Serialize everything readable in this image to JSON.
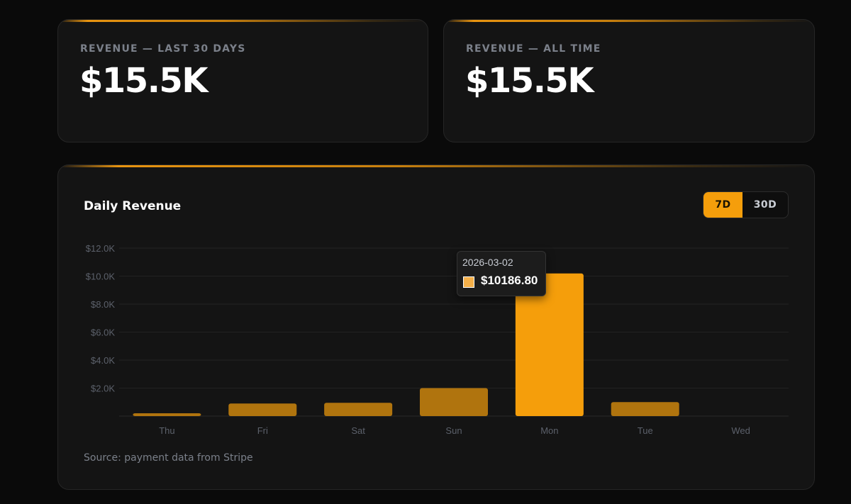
{
  "stats": [
    {
      "label": "REVENUE — LAST 30 DAYS",
      "value": "$15.5K"
    },
    {
      "label": "REVENUE — ALL TIME",
      "value": "$15.5K"
    }
  ],
  "chart_panel": {
    "title": "Daily Revenue",
    "range_options": [
      "7D",
      "30D"
    ],
    "selected_range": "7D",
    "source_note": "Source: payment data from Stripe"
  },
  "tooltip": {
    "date": "2026-03-02",
    "value": "$10186.80",
    "day": "Mon"
  },
  "colors": {
    "accent": "#f59e0b",
    "bar_dim": "#b0740e",
    "background": "#0a0a0a",
    "card": "#141414"
  },
  "chart_data": {
    "type": "bar",
    "title": "Daily Revenue",
    "categories": [
      "Thu",
      "Fri",
      "Sat",
      "Sun",
      "Mon",
      "Tue",
      "Wed"
    ],
    "values": [
      200,
      900,
      950,
      2000,
      10186.8,
      1000,
      0
    ],
    "highlighted": "Mon",
    "y_ticks": [
      "$2.0K",
      "$4.0K",
      "$6.0K",
      "$8.0K",
      "$10.0K",
      "$12.0K"
    ],
    "y_tick_values": [
      2000,
      4000,
      6000,
      8000,
      10000,
      12000
    ],
    "ylim": [
      0,
      12000
    ],
    "xlabel": "",
    "ylabel": "",
    "grid": true
  }
}
